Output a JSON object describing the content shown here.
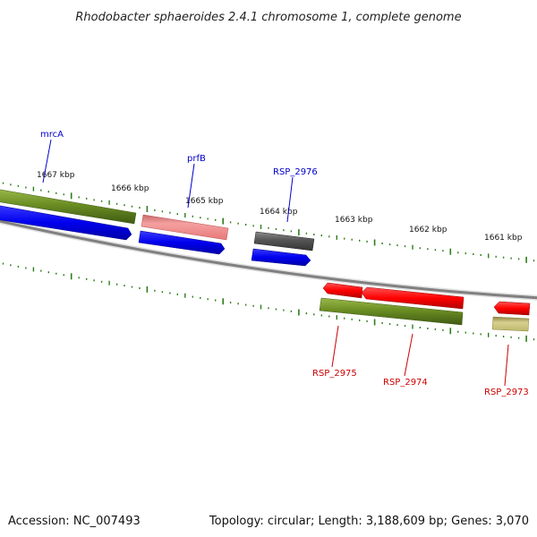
{
  "title": "Rhodobacter sphaeroides 2.4.1 chromosome 1, complete genome",
  "footer": {
    "accession": "Accession: NC_007493",
    "summary": "Topology: circular; Length: 3,188,609 bp; Genes: 3,070"
  },
  "colors": {
    "backbone": "#808080",
    "tick": "#2e7d1a",
    "label_forward": "#0000cc",
    "label_reverse": "#cc0000",
    "cds": "#6b8e23",
    "blue_feature": "#0000ee",
    "rna": "#f08080",
    "gray_feature": "#555555",
    "red_feature": "#ff0000",
    "tan_feature": "#bdb76b"
  },
  "tick_labels": [
    "1667 kbp",
    "1666 kbp",
    "1665 kbp",
    "1664 kbp",
    "1663 kbp",
    "1662 kbp",
    "1661 kbp"
  ],
  "gene_labels": {
    "forward": [
      "mrcA",
      "prfB",
      "RSP_2976"
    ],
    "reverse": [
      "RSP_2975",
      "RSP_2974",
      "RSP_2973"
    ]
  }
}
